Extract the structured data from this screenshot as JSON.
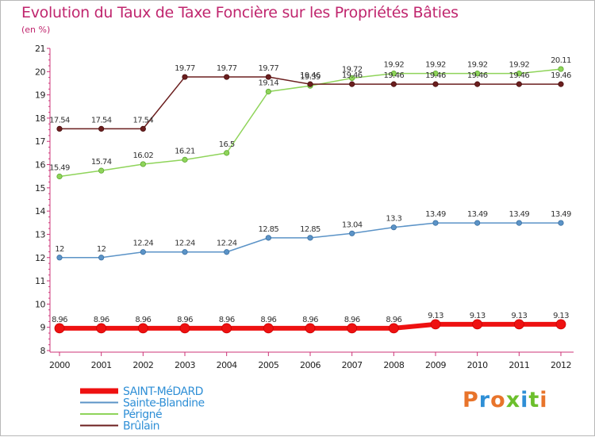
{
  "header": {
    "title": "Evolution du Taux de Taxe Foncière sur les Propriétés Bâties",
    "unit": "(en %)"
  },
  "logo": {
    "text": "Proxiti",
    "colors": [
      "#e8742b",
      "#2f8fd6",
      "#e8742b",
      "#6cbf2c",
      "#2f8fd6",
      "#6cbf2c",
      "#e8742b"
    ]
  },
  "chart_data": {
    "type": "line",
    "title": "Evolution du Taux de Taxe Foncière sur les Propriétés Bâties",
    "ylabel": "(en %)",
    "xlabel": "",
    "ylim": [
      8,
      21
    ],
    "yticks": [
      8,
      9,
      10,
      11,
      12,
      13,
      14,
      15,
      16,
      17,
      18,
      19,
      20,
      21
    ],
    "categories": [
      "2000",
      "2001",
      "2002",
      "2003",
      "2004",
      "2005",
      "2006",
      "2007",
      "2008",
      "2009",
      "2010",
      "2011",
      "2012"
    ],
    "series": [
      {
        "name": "Sainte-Blandine",
        "color": "#5b93c7",
        "values": [
          12,
          12,
          12.24,
          12.24,
          12.24,
          12.85,
          12.85,
          13.04,
          13.3,
          13.49,
          13.49,
          13.49,
          13.49
        ]
      },
      {
        "name": "Périgné",
        "color": "#8fd45a",
        "values": [
          15.49,
          15.74,
          16.02,
          16.21,
          16.5,
          19.14,
          19.39,
          19.72,
          19.92,
          19.92,
          19.92,
          19.92,
          20.11
        ]
      },
      {
        "name": "Brûlain",
        "color": "#6b1e1e",
        "values": [
          17.54,
          17.54,
          17.54,
          19.77,
          19.77,
          19.77,
          19.46,
          19.46,
          19.46,
          19.46,
          19.46,
          19.46,
          19.46
        ]
      },
      {
        "name": "SAINT-MéDARD",
        "color": "#ee1111",
        "values": [
          8.96,
          8.96,
          8.96,
          8.96,
          8.96,
          8.96,
          8.96,
          8.96,
          8.96,
          9.13,
          9.13,
          9.13,
          9.13
        ]
      }
    ],
    "legend": [
      {
        "name": "SAINT-MéDARD",
        "color": "#ee1111",
        "text_color": "#2f8fd6"
      },
      {
        "name": "Sainte-Blandine",
        "color": "#5b93c7",
        "text_color": "#2f8fd6"
      },
      {
        "name": "Périgné",
        "color": "#8fd45a",
        "text_color": "#2f8fd6"
      },
      {
        "name": "Brûlain",
        "color": "#6b1e1e",
        "text_color": "#2f8fd6"
      }
    ],
    "legend_position": "bottom-left",
    "grid": false
  }
}
